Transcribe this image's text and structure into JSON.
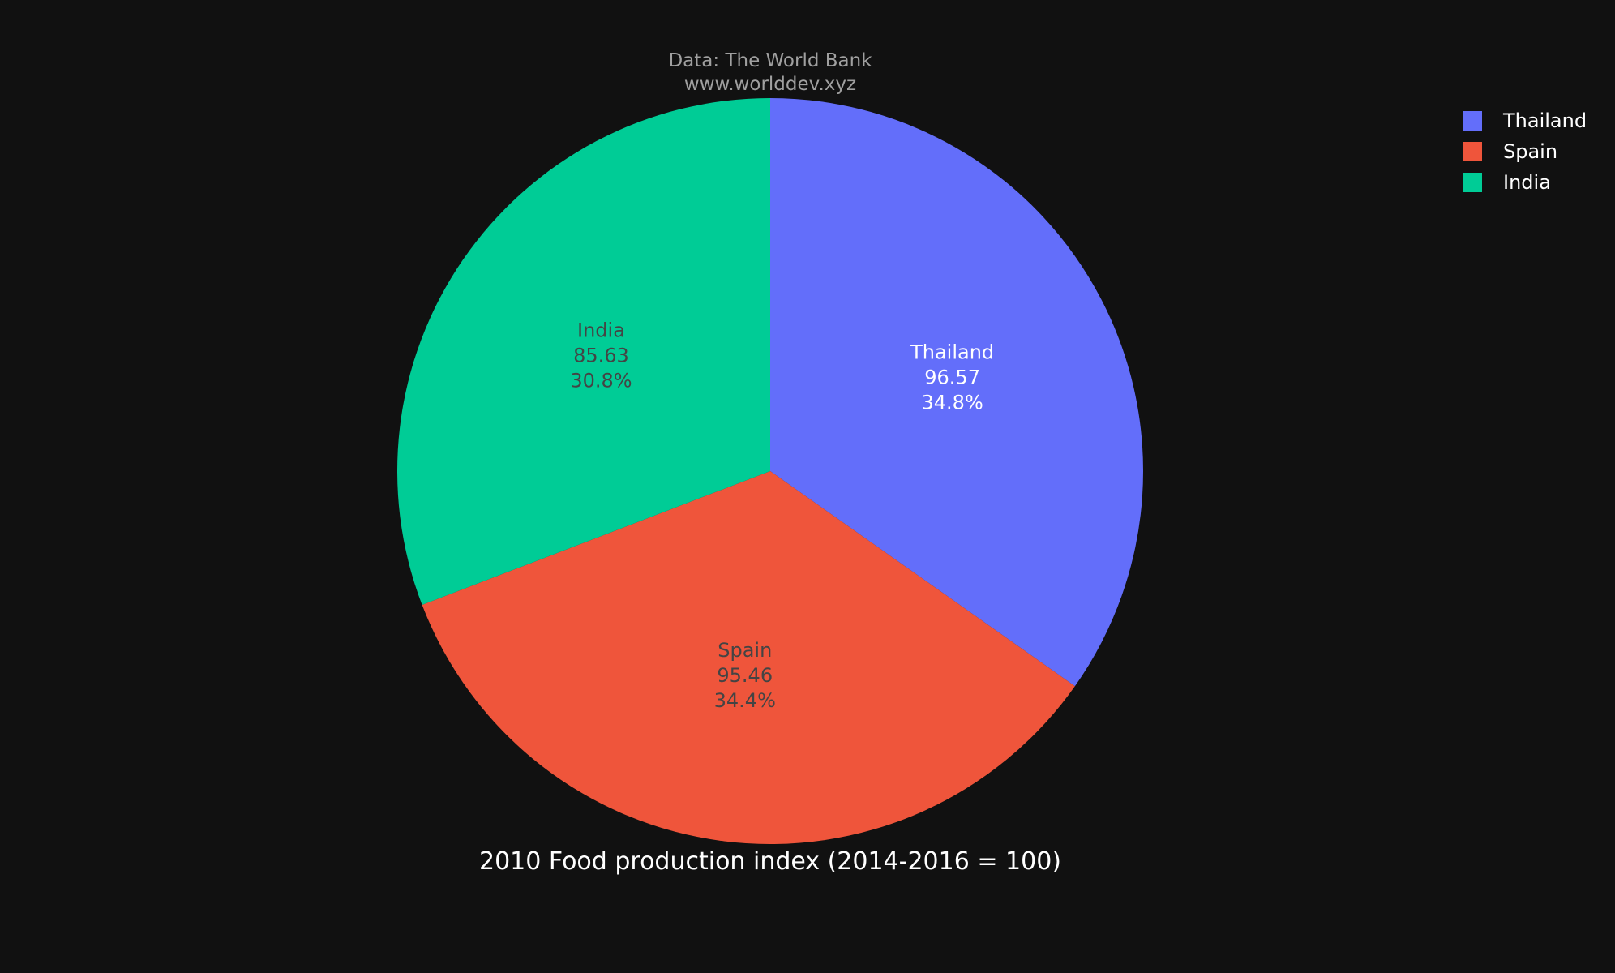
{
  "chart_data": {
    "type": "pie",
    "title": "2010 Food production index (2014-2016 = 100)",
    "subtitle": [
      "Data: The World Bank",
      "www.worlddev.xyz"
    ],
    "labels": [
      "Thailand",
      "Spain",
      "India"
    ],
    "values": [
      96.57,
      95.46,
      85.63
    ],
    "percent_labels": [
      "34.8%",
      "34.4%",
      "30.8%"
    ],
    "value_labels": [
      "96.57",
      "95.46",
      "85.63"
    ],
    "colors": [
      "#636efa",
      "#ef553b",
      "#00cc96"
    ],
    "text_colors": [
      "#ffffff",
      "#444444",
      "#444444"
    ],
    "legend": {
      "placement": "top-right",
      "entries": [
        "Thailand",
        "Spain",
        "India"
      ]
    }
  },
  "theme": {
    "background": "#111111",
    "text": "#ffffff",
    "subtitle_text": "#a0a0a0"
  }
}
